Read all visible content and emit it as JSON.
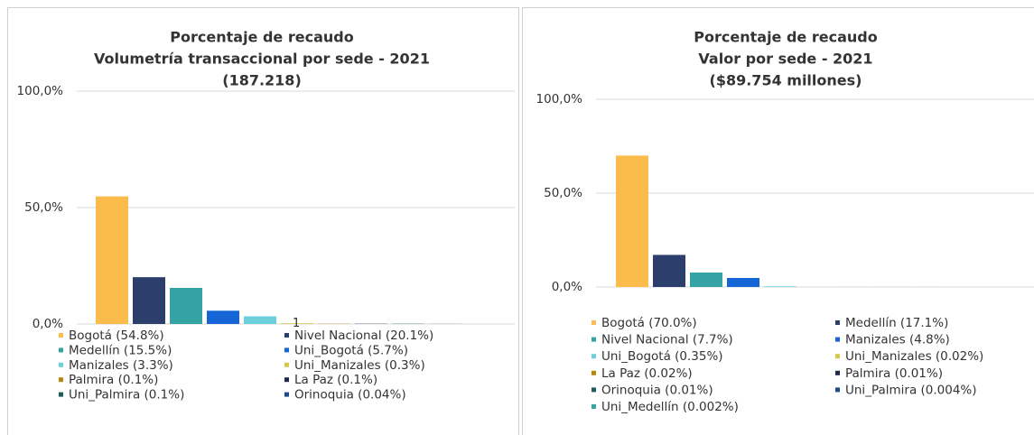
{
  "chart_data": [
    {
      "type": "bar",
      "title": [
        "Porcentaje de recaudo",
        "Volumetría transaccional por sede - 2021",
        "(187.218)"
      ],
      "ylim": [
        0,
        100
      ],
      "yticks": [
        {
          "value": 0,
          "label": "0,0%"
        },
        {
          "value": 50,
          "label": "50,0%"
        },
        {
          "value": 100,
          "label": "100,0%"
        }
      ],
      "grid": true,
      "annotations": [
        "1"
      ],
      "series": [
        {
          "name": "Bogotá (54.8%)",
          "color": "#fbbc4c",
          "values": [
            54.8
          ]
        },
        {
          "name": "Nivel Nacional (20.1%)",
          "color": "#2c3e6b",
          "values": [
            20.1
          ]
        },
        {
          "name": "Medellín (15.5%)",
          "color": "#35a3a3",
          "values": [
            15.5
          ]
        },
        {
          "name": "Uni_Bogotá (5.7%)",
          "color": "#1565d6",
          "values": [
            5.7
          ]
        },
        {
          "name": "Manizales (3.3%)",
          "color": "#6ccfdc",
          "values": [
            3.3
          ]
        },
        {
          "name": "Uni_Manizales (0.3%)",
          "color": "#d5c94a",
          "values": [
            0.3
          ]
        },
        {
          "name": "Palmira (0.1%)",
          "color": "#b8860b",
          "values": [
            0.1
          ]
        },
        {
          "name": "La Paz (0.1%)",
          "color": "#1e2a4a",
          "values": [
            0.1
          ]
        },
        {
          "name": "Uni_Palmira (0.1%)",
          "color": "#1f5c5c",
          "values": [
            0.1
          ]
        },
        {
          "name": "Orinoquia (0.04%)",
          "color": "#1f4a8a",
          "values": [
            0.04
          ]
        }
      ]
    },
    {
      "type": "bar",
      "title": [
        "Porcentaje de recaudo",
        "Valor por sede - 2021",
        "($89.754 millones)"
      ],
      "ylim": [
        0,
        100
      ],
      "yticks": [
        {
          "value": 0,
          "label": "0,0%"
        },
        {
          "value": 50,
          "label": "50,0%"
        },
        {
          "value": 100,
          "label": "100,0%"
        }
      ],
      "grid": true,
      "series": [
        {
          "name": "Bogotá (70.0%)",
          "color": "#fbbc4c",
          "values": [
            70.0
          ]
        },
        {
          "name": "Medellín (17.1%)",
          "color": "#2c3e6b",
          "values": [
            17.1
          ]
        },
        {
          "name": "Nivel Nacional (7.7%)",
          "color": "#35a3a3",
          "values": [
            7.7
          ]
        },
        {
          "name": "Manizales (4.8%)",
          "color": "#1565d6",
          "values": [
            4.8
          ]
        },
        {
          "name": "Uni_Bogotá (0.35%)",
          "color": "#6ccfdc",
          "values": [
            0.35
          ]
        },
        {
          "name": "Uni_Manizales (0.02%)",
          "color": "#d5c94a",
          "values": [
            0.02
          ]
        },
        {
          "name": "La Paz (0.02%)",
          "color": "#b8860b",
          "values": [
            0.02
          ]
        },
        {
          "name": "Palmira (0.01%)",
          "color": "#1e2a4a",
          "values": [
            0.01
          ]
        },
        {
          "name": "Orinoquia (0.01%)",
          "color": "#1f5c5c",
          "values": [
            0.01
          ]
        },
        {
          "name": "Uni_Palmira (0.004%)",
          "color": "#1f4a8a",
          "values": [
            0.004
          ]
        },
        {
          "name": "Uni_Medellín (0.002%)",
          "color": "#35a3a3",
          "values": [
            0.002
          ]
        }
      ]
    }
  ]
}
